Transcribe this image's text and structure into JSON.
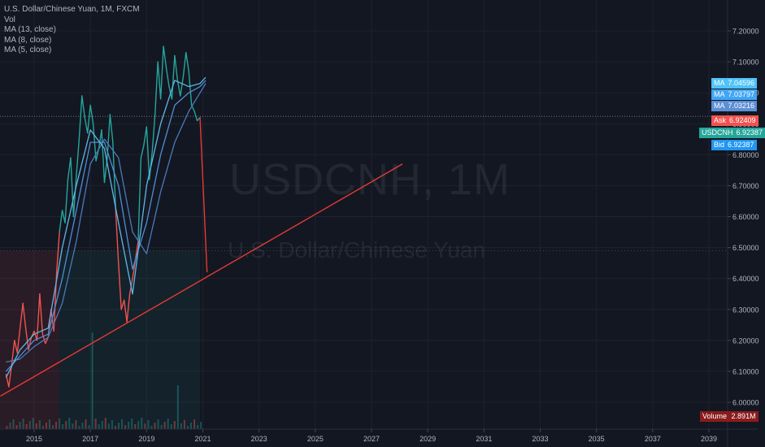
{
  "legend": {
    "title": "U.S. Dollar/Chinese Yuan, 1M, FXCM",
    "lines": [
      "Vol",
      "MA (13, close)",
      "MA (8, close)",
      "MA (5, close)"
    ]
  },
  "watermark": {
    "symbol": "USDCNH, 1M",
    "name": "U.S. Dollar/Chinese Yuan"
  },
  "price_tags": [
    {
      "label": "MA",
      "value": "7.04596",
      "price": 7.04596,
      "color": "#4fc3f7"
    },
    {
      "label": "MA",
      "value": "7.03797",
      "price": 7.03797,
      "color": "#42a5f5"
    },
    {
      "label": "MA",
      "value": "7.03216",
      "price": 7.03216,
      "color": "#5c8fd6"
    },
    {
      "label": "Ask",
      "value": "6.92409",
      "price": 6.92409,
      "color": "#ef5350"
    },
    {
      "label": "USDCNH",
      "value": "6.92387",
      "price": 6.92387,
      "color": "#26a69a"
    },
    {
      "label": "Bid",
      "value": "6.92387",
      "price": 6.92387,
      "color": "#2196f3"
    }
  ],
  "volume_tag": {
    "label": "Volume",
    "value": "2.891M",
    "color": "#8b1c1c"
  },
  "chart_data": {
    "type": "line",
    "title": "U.S. Dollar/Chinese Yuan, 1M, FXCM",
    "xlim": [
      2014.0,
      2039.6
    ],
    "ylim": [
      5.95,
      7.27
    ],
    "x_ticks": [
      "2015",
      "2017",
      "2019",
      "2021",
      "2023",
      "2025",
      "2027",
      "2029",
      "2031",
      "2033",
      "2035",
      "2037",
      "2039"
    ],
    "y_ticks": [
      "6.00000",
      "6.10000",
      "6.20000",
      "6.30000",
      "6.40000",
      "6.50000",
      "6.60000",
      "6.70000",
      "6.80000",
      "6.90000",
      "7.00000",
      "7.10000",
      "7.20000"
    ],
    "price_line": 6.924,
    "price_series": {
      "x": [
        2014.0,
        2014.1,
        2014.2,
        2014.3,
        2014.4,
        2014.5,
        2014.6,
        2014.7,
        2014.8,
        2014.9,
        2015.0,
        2015.1,
        2015.2,
        2015.3,
        2015.4,
        2015.5,
        2015.6,
        2015.7,
        2015.8,
        2015.9,
        2016.0,
        2016.1,
        2016.2,
        2016.3,
        2016.4,
        2016.5,
        2016.6,
        2016.7,
        2016.8,
        2016.9,
        2017.0,
        2017.1,
        2017.2,
        2017.3,
        2017.4,
        2017.5,
        2017.6,
        2017.7,
        2017.8,
        2017.9,
        2018.0,
        2018.1,
        2018.2,
        2018.3,
        2018.4,
        2018.5,
        2018.6,
        2018.7,
        2018.8,
        2018.9,
        2019.0,
        2019.1,
        2019.2,
        2019.3,
        2019.4,
        2019.5,
        2019.6,
        2019.7,
        2019.8,
        2019.9,
        2020.0,
        2020.1,
        2020.2,
        2020.3,
        2020.4,
        2020.5,
        2020.6,
        2020.7,
        2020.8,
        2020.9
      ],
      "values": [
        6.09,
        6.05,
        6.12,
        6.2,
        6.16,
        6.24,
        6.32,
        6.24,
        6.17,
        6.21,
        6.23,
        6.2,
        6.35,
        6.22,
        6.19,
        6.21,
        6.3,
        6.23,
        6.42,
        6.55,
        6.62,
        6.58,
        6.72,
        6.79,
        6.6,
        6.73,
        6.85,
        6.99,
        6.92,
        6.87,
        6.96,
        6.9,
        6.78,
        6.82,
        6.88,
        6.71,
        6.79,
        6.93,
        6.84,
        6.62,
        6.45,
        6.3,
        6.33,
        6.26,
        6.35,
        6.4,
        6.46,
        6.52,
        6.79,
        6.83,
        6.89,
        6.72,
        6.81,
        6.93,
        7.1,
        6.98,
        7.15,
        7.08,
        7.02,
        6.98,
        7.12,
        7.04,
        6.99,
        7.05,
        7.13,
        7.07,
        6.96,
        6.94,
        6.91,
        6.92
      ],
      "colors_up": "#26a69a",
      "colors_down": "#ef5350"
    },
    "series": [
      {
        "name": "MA (13, close)",
        "color": "#4a7ab8",
        "x": [
          2014.0,
          2014.5,
          2015.0,
          2015.5,
          2016.0,
          2016.5,
          2017.0,
          2017.5,
          2018.0,
          2018.5,
          2019.0,
          2019.5,
          2020.0,
          2020.5,
          2020.9,
          2021.1
        ],
        "values": [
          6.13,
          6.14,
          6.18,
          6.21,
          6.32,
          6.52,
          6.77,
          6.85,
          6.79,
          6.55,
          6.48,
          6.68,
          6.84,
          6.94,
          7.0,
          7.03
        ]
      },
      {
        "name": "MA (8, close)",
        "color": "#4f8fd6",
        "x": [
          2014.0,
          2014.5,
          2015.0,
          2015.5,
          2016.0,
          2016.5,
          2017.0,
          2017.5,
          2018.0,
          2018.5,
          2019.0,
          2019.5,
          2020.0,
          2020.5,
          2020.9,
          2021.1
        ],
        "values": [
          6.1,
          6.15,
          6.2,
          6.22,
          6.4,
          6.62,
          6.84,
          6.84,
          6.7,
          6.43,
          6.58,
          6.8,
          6.96,
          7.0,
          7.02,
          7.04
        ]
      },
      {
        "name": "MA (5, close)",
        "color": "#5db8e6",
        "x": [
          2014.0,
          2014.5,
          2015.0,
          2015.5,
          2016.0,
          2016.5,
          2017.0,
          2017.5,
          2018.0,
          2018.5,
          2019.0,
          2019.5,
          2020.0,
          2020.5,
          2020.9,
          2021.1
        ],
        "values": [
          6.08,
          6.17,
          6.22,
          6.24,
          6.5,
          6.7,
          6.88,
          6.82,
          6.58,
          6.35,
          6.7,
          6.9,
          7.04,
          7.02,
          7.03,
          7.05
        ]
      }
    ],
    "trendlines": [
      {
        "x": [
          2013.8,
          2028.1
        ],
        "values": [
          6.02,
          6.77
        ],
        "color": "#e53935"
      },
      {
        "x": [
          2020.9,
          2021.15
        ],
        "values": [
          6.92,
          6.42
        ],
        "color": "#e53935"
      }
    ]
  }
}
